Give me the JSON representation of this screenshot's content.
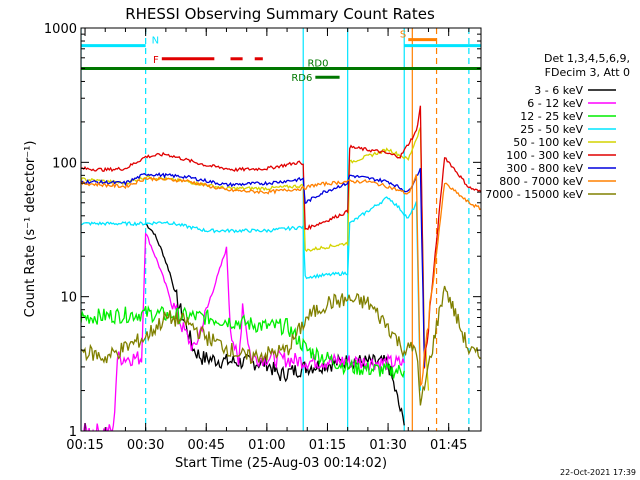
{
  "chart_data": {
    "type": "line",
    "title": "RHESSI Observing Summary Count Rates",
    "xlabel": "Start Time (25-Aug-03 00:14:02)",
    "ylabel": "Count Rate (s⁻¹ detector⁻¹)",
    "yscale": "log",
    "ylim": [
      1,
      1000
    ],
    "xlim": [
      "00:14",
      "01:53"
    ],
    "x_ticks": [
      "00:15",
      "00:30",
      "00:45",
      "01:00",
      "01:15",
      "01:30",
      "01:45"
    ],
    "y_ticks": [
      "1",
      "10",
      "100",
      "1000"
    ],
    "timestamp": "22-Oct-2021 17:39",
    "legend": {
      "placement": "right",
      "header": [
        "Det 1,3,4,5,6,9,",
        "FDecim 3, Att 0"
      ],
      "entries": [
        {
          "label": "3 - 6 keV",
          "color": "#000000"
        },
        {
          "label": "6 - 12 keV",
          "color": "#ff00ff"
        },
        {
          "label": "12 - 25 keV",
          "color": "#00ee00"
        },
        {
          "label": "25 - 50 keV",
          "color": "#00e5ff"
        },
        {
          "label": "50 - 100 keV",
          "color": "#d4d400"
        },
        {
          "label": "100 - 300 keV",
          "color": "#e00000"
        },
        {
          "label": "300 - 800 keV",
          "color": "#0000dd"
        },
        {
          "label": "800 - 7000 keV",
          "color": "#ff8000"
        },
        {
          "label": "7000 - 15000 keV",
          "color": "#808000"
        }
      ]
    },
    "flag_bars": [
      {
        "label": "N",
        "color": "#00e5ff",
        "segments": [
          [
            "00:14",
            "00:30"
          ],
          [
            "01:34",
            "01:53"
          ]
        ],
        "level": 740
      },
      {
        "label": "F",
        "color": "#e00000",
        "segments": [
          [
            "00:34",
            "00:47"
          ],
          [
            "00:51",
            "00:54"
          ],
          [
            "00:57",
            "00:59"
          ]
        ],
        "level": 590
      },
      {
        "label": "S",
        "color": "#ff8000",
        "segments": [
          [
            "01:35",
            "01:42"
          ]
        ],
        "level": 820
      },
      {
        "label": "RD0",
        "color": "#007700",
        "segments": [
          [
            "00:14",
            "01:53"
          ]
        ],
        "level": 500
      },
      {
        "label": "RD6",
        "color": "#007700",
        "segments": [
          [
            "01:12",
            "01:18"
          ]
        ],
        "level": 430
      }
    ],
    "vlines": [
      {
        "x": "00:14",
        "color": "#00e5ff",
        "style": "solid"
      },
      {
        "x": "00:30",
        "color": "#00e5ff",
        "style": "dash"
      },
      {
        "x": "01:09",
        "color": "#00e5ff",
        "style": "solid"
      },
      {
        "x": "01:20",
        "color": "#00e5ff",
        "style": "solid"
      },
      {
        "x": "01:34",
        "color": "#00e5ff",
        "style": "solid"
      },
      {
        "x": "01:50",
        "color": "#00e5ff",
        "style": "dash"
      },
      {
        "x": "01:36",
        "color": "#ff8000",
        "style": "solid"
      },
      {
        "x": "01:42",
        "color": "#ff8000",
        "style": "dash"
      }
    ],
    "series": [
      {
        "name": "3 - 6 keV",
        "color": "#000000",
        "points": [
          [
            "00:30",
            35
          ],
          [
            "00:32",
            30
          ],
          [
            "00:34",
            22
          ],
          [
            "00:36",
            15
          ],
          [
            "00:38",
            9
          ],
          [
            "00:40",
            6
          ],
          [
            "00:42",
            4
          ],
          [
            "00:44",
            3.5
          ],
          [
            "00:50",
            3.3
          ],
          [
            "01:00",
            3.2
          ],
          [
            "01:03",
            2.6
          ],
          [
            "01:10",
            3
          ],
          [
            "01:20",
            3.3
          ],
          [
            "01:30",
            3.2
          ],
          [
            "01:34",
            1.1
          ]
        ]
      },
      {
        "name": "6 - 12 keV",
        "color": "#ff00ff",
        "points": [
          [
            "00:14",
            1
          ],
          [
            "00:22",
            1
          ],
          [
            "00:23",
            3.5
          ],
          [
            "00:29",
            3.5
          ],
          [
            "00:30",
            30
          ],
          [
            "00:33",
            18
          ],
          [
            "00:36",
            10
          ],
          [
            "00:39",
            6
          ],
          [
            "00:42",
            4
          ],
          [
            "00:50",
            23
          ],
          [
            "00:51",
            6
          ],
          [
            "00:53",
            3
          ],
          [
            "00:54",
            9
          ],
          [
            "00:56",
            3.5
          ],
          [
            "01:00",
            3.5
          ],
          [
            "01:10",
            3.3
          ],
          [
            "01:20",
            3.3
          ],
          [
            "01:30",
            3.2
          ],
          [
            "01:34",
            3.2
          ]
        ]
      },
      {
        "name": "12 - 25 keV",
        "color": "#00ee00",
        "points": [
          [
            "00:14",
            7
          ],
          [
            "00:30",
            7.5
          ],
          [
            "00:45",
            7
          ],
          [
            "01:00",
            6
          ],
          [
            "01:05",
            6
          ],
          [
            "01:10",
            4
          ],
          [
            "01:20",
            3
          ],
          [
            "01:30",
            2.8
          ],
          [
            "01:34",
            2.8
          ]
        ]
      },
      {
        "name": "25 - 50 keV",
        "color": "#00e5ff",
        "points": [
          [
            "00:14",
            35
          ],
          [
            "00:30",
            35
          ],
          [
            "00:35",
            36
          ],
          [
            "00:45",
            31
          ],
          [
            "01:00",
            31
          ],
          [
            "01:09",
            33
          ],
          [
            "01:09.5",
            14
          ],
          [
            "01:20",
            15
          ],
          [
            "01:20.5",
            35
          ],
          [
            "01:30",
            55
          ],
          [
            "01:33",
            45
          ],
          [
            "01:35",
            38
          ],
          [
            "01:37",
            50
          ],
          [
            "01:38",
            2
          ]
        ]
      },
      {
        "name": "50 - 100 keV",
        "color": "#d4d400",
        "points": [
          [
            "00:14",
            75
          ],
          [
            "00:25",
            70
          ],
          [
            "00:30",
            78
          ],
          [
            "00:40",
            72
          ],
          [
            "00:50",
            64
          ],
          [
            "01:00",
            64
          ],
          [
            "01:09",
            67
          ],
          [
            "01:09.5",
            22
          ],
          [
            "01:20",
            25
          ],
          [
            "01:20.5",
            100
          ],
          [
            "01:30",
            125
          ],
          [
            "01:35",
            105
          ],
          [
            "01:38",
            180
          ],
          [
            "01:39",
            5
          ],
          [
            "01:40",
            2
          ]
        ]
      },
      {
        "name": "100 - 300 keV",
        "color": "#e00000",
        "points": [
          [
            "00:14",
            90
          ],
          [
            "00:20",
            88
          ],
          [
            "00:25",
            90
          ],
          [
            "00:30",
            110
          ],
          [
            "00:35",
            115
          ],
          [
            "00:45",
            95
          ],
          [
            "00:52",
            88
          ],
          [
            "01:00",
            90
          ],
          [
            "01:08",
            100
          ],
          [
            "01:09",
            95
          ],
          [
            "01:09.5",
            32
          ],
          [
            "01:15",
            37
          ],
          [
            "01:20",
            43
          ],
          [
            "01:20.5",
            130
          ],
          [
            "01:28",
            120
          ],
          [
            "01:33",
            110
          ],
          [
            "01:37",
            170
          ],
          [
            "01:38",
            260
          ],
          [
            "01:39",
            3
          ],
          [
            "01:44",
            110
          ],
          [
            "01:50",
            65
          ],
          [
            "01:53",
            60
          ]
        ]
      },
      {
        "name": "300 - 800 keV",
        "color": "#0000dd",
        "points": [
          [
            "00:14",
            72
          ],
          [
            "00:25",
            70
          ],
          [
            "00:30",
            82
          ],
          [
            "00:40",
            78
          ],
          [
            "00:50",
            68
          ],
          [
            "01:00",
            70
          ],
          [
            "01:09",
            75
          ],
          [
            "01:09.5",
            50
          ],
          [
            "01:14",
            60
          ],
          [
            "01:20",
            70
          ],
          [
            "01:20.5",
            80
          ],
          [
            "01:30",
            72
          ],
          [
            "01:35",
            60
          ],
          [
            "01:38",
            90
          ],
          [
            "01:39",
            3
          ]
        ]
      },
      {
        "name": "800 - 7000 keV",
        "color": "#ff8000",
        "points": [
          [
            "00:14",
            70
          ],
          [
            "00:25",
            66
          ],
          [
            "00:30",
            76
          ],
          [
            "00:40",
            73
          ],
          [
            "00:50",
            62
          ],
          [
            "01:00",
            60
          ],
          [
            "01:09",
            64
          ],
          [
            "01:12",
            68
          ],
          [
            "01:20",
            72
          ],
          [
            "01:25",
            72
          ],
          [
            "01:30",
            66
          ],
          [
            "01:35",
            58
          ],
          [
            "01:37",
            80
          ],
          [
            "01:38",
            2
          ],
          [
            "01:44",
            70
          ],
          [
            "01:50",
            50
          ],
          [
            "01:53",
            45
          ]
        ]
      },
      {
        "name": "7000 - 15000 keV",
        "color": "#808000",
        "points": [
          [
            "00:14",
            4
          ],
          [
            "00:20",
            3.5
          ],
          [
            "00:30",
            5
          ],
          [
            "00:35",
            7
          ],
          [
            "00:40",
            6.5
          ],
          [
            "00:45",
            5
          ],
          [
            "00:55",
            3.5
          ],
          [
            "01:05",
            4
          ],
          [
            "01:10",
            7
          ],
          [
            "01:15",
            9
          ],
          [
            "01:20",
            9.5
          ],
          [
            "01:25",
            9
          ],
          [
            "01:30",
            6
          ],
          [
            "01:34",
            4
          ],
          [
            "01:37",
            4.2
          ],
          [
            "01:38",
            1.5
          ],
          [
            "01:44",
            12
          ],
          [
            "01:50",
            4
          ],
          [
            "01:53",
            3.5
          ]
        ]
      }
    ]
  }
}
